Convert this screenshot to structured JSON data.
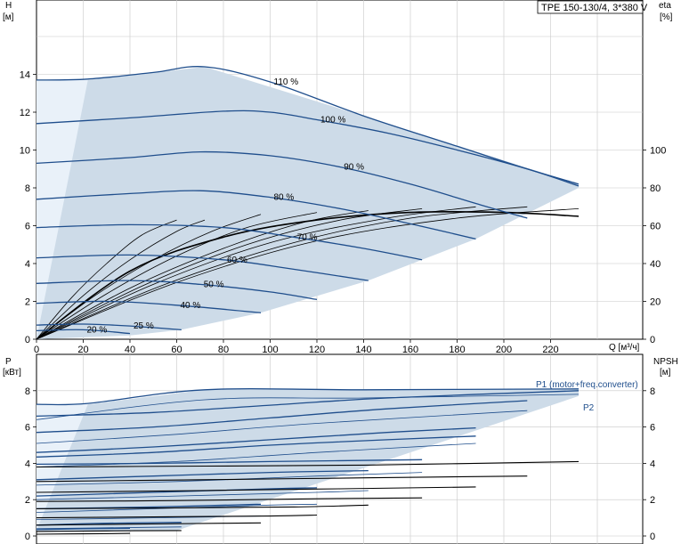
{
  "chart_data": [
    {
      "id": "head",
      "type": "line",
      "title": "TPE 150-130/4, 3*380 V",
      "xlabel": "Q [м³/ч]",
      "ylabel_left": "H",
      "ylabel_left_unit": "[м]",
      "ylabel_right": "eta",
      "ylabel_right_unit": "[%]",
      "xlim": [
        0,
        240
      ],
      "ylim": [
        0,
        18
      ],
      "xticks": [
        "0",
        "20",
        "40",
        "60",
        "80",
        "100",
        "120",
        "140",
        "160",
        "180",
        "200",
        "220"
      ],
      "yticks_left": [
        "0",
        "2",
        "4",
        "6",
        "8",
        "10",
        "12",
        "14"
      ],
      "yticks_right": [
        "0",
        "20",
        "40",
        "60",
        "80",
        "100"
      ],
      "eta_scale": {
        "ylim": [
          0,
          100
        ],
        "h_at_100": 10
      },
      "grid": true,
      "envelope": [
        [
          0,
          13.7
        ],
        [
          22,
          13.7
        ],
        [
          72,
          14.4
        ],
        [
          140,
          11.8
        ],
        [
          232,
          8.2
        ],
        [
          232,
          8.0
        ],
        [
          188,
          5.3
        ],
        [
          142,
          3.1
        ],
        [
          96,
          1.4
        ],
        [
          62,
          0.5
        ],
        [
          40,
          0.2
        ],
        [
          0,
          0
        ]
      ],
      "series": [
        {
          "name": "110 %",
          "x": [
            0,
            22,
            50,
            72,
            100,
            140,
            180,
            210,
            232
          ],
          "y": [
            13.7,
            13.75,
            14.1,
            14.4,
            13.6,
            11.8,
            10.2,
            9.0,
            8.2
          ]
        },
        {
          "name": "100 %",
          "x": [
            0,
            40,
            80,
            100,
            120,
            150,
            180,
            210,
            232
          ],
          "y": [
            11.4,
            11.7,
            12.05,
            12.0,
            11.6,
            10.9,
            10.0,
            9.0,
            8.1
          ]
        },
        {
          "name": "90 %",
          "x": [
            0,
            40,
            70,
            100,
            130,
            160,
            190,
            210
          ],
          "y": [
            9.3,
            9.6,
            9.9,
            9.7,
            9.1,
            8.2,
            7.1,
            6.4
          ]
        },
        {
          "name": "80 %",
          "x": [
            0,
            40,
            70,
            100,
            130,
            160,
            188
          ],
          "y": [
            7.4,
            7.7,
            7.85,
            7.5,
            6.9,
            6.1,
            5.3
          ]
        },
        {
          "name": "70 %",
          "x": [
            0,
            40,
            80,
            110,
            140,
            165
          ],
          "y": [
            5.9,
            6.05,
            5.9,
            5.4,
            4.8,
            4.2
          ]
        },
        {
          "name": "60 %",
          "x": [
            0,
            40,
            80,
            110,
            142
          ],
          "y": [
            4.3,
            4.45,
            4.2,
            3.7,
            3.1
          ]
        },
        {
          "name": "50 %",
          "x": [
            0,
            40,
            70,
            100,
            120
          ],
          "y": [
            2.95,
            3.1,
            2.9,
            2.5,
            2.1
          ]
        },
        {
          "name": "40 %",
          "x": [
            0,
            30,
            60,
            96
          ],
          "y": [
            1.9,
            2.0,
            1.8,
            1.4
          ]
        },
        {
          "name": "25 %",
          "x": [
            0,
            20,
            40,
            62
          ],
          "y": [
            0.75,
            0.8,
            0.7,
            0.5
          ]
        },
        {
          "name": "20 %",
          "x": [
            0,
            20,
            40
          ],
          "y": [
            0.45,
            0.5,
            0.3
          ]
        }
      ],
      "eta_curves": [
        {
          "x": [
            0,
            15,
            30,
            45,
            60
          ],
          "y": [
            0,
            22,
            40,
            55,
            63
          ]
        },
        {
          "x": [
            0,
            20,
            40,
            60,
            72
          ],
          "y": [
            0,
            23,
            42,
            57,
            63
          ]
        },
        {
          "x": [
            0,
            25,
            50,
            75,
            96
          ],
          "y": [
            0,
            23,
            42,
            57,
            66
          ]
        },
        {
          "x": [
            0,
            30,
            60,
            90,
            120
          ],
          "y": [
            0,
            24,
            44,
            59,
            67
          ]
        },
        {
          "x": [
            0,
            40,
            80,
            115,
            142
          ],
          "y": [
            0,
            27,
            48,
            62,
            68
          ]
        },
        {
          "x": [
            0,
            45,
            90,
            130,
            165
          ],
          "y": [
            0,
            28,
            50,
            63,
            69
          ]
        },
        {
          "x": [
            0,
            50,
            100,
            150,
            188
          ],
          "y": [
            0,
            29,
            51,
            64,
            70
          ]
        },
        {
          "x": [
            0,
            55,
            110,
            160,
            210
          ],
          "y": [
            0,
            29,
            51,
            64,
            70
          ]
        },
        {
          "x": [
            0,
            60,
            120,
            180,
            232
          ],
          "y": [
            0,
            30,
            52,
            64,
            69
          ]
        }
      ],
      "eta_max_curve": {
        "x": [
          0,
          40,
          80,
          120,
          160,
          200,
          232
        ],
        "y": [
          0,
          36,
          54,
          63,
          67,
          67,
          65
        ]
      }
    },
    {
      "id": "power",
      "type": "line",
      "xlim": [
        0,
        240
      ],
      "ylabel_left": "P",
      "ylabel_left_unit": "[кВт]",
      "ylabel_right": "NPSH",
      "ylabel_right_unit": "[м]",
      "ylim": [
        0,
        9.5
      ],
      "yticks_left": [
        "0",
        "2",
        "4",
        "6",
        "8"
      ],
      "yticks_right": [
        "0",
        "2",
        "4",
        "6",
        "8"
      ],
      "grid": true,
      "legend": [
        {
          "label": "P1 (motor+freq.converter)"
        },
        {
          "label": "P2"
        }
      ],
      "envelope": [
        [
          0,
          7.25
        ],
        [
          22,
          7.25
        ],
        [
          72,
          8.05
        ],
        [
          140,
          8.05
        ],
        [
          232,
          8.1
        ],
        [
          232,
          7.7
        ],
        [
          60,
          0.3
        ],
        [
          0,
          0.3
        ]
      ],
      "p1_series": [
        {
          "x": [
            0,
            22,
            72,
            140,
            232
          ],
          "y": [
            7.25,
            7.3,
            8.05,
            8.05,
            8.1
          ]
        },
        {
          "x": [
            0,
            50,
            100,
            150,
            232
          ],
          "y": [
            6.6,
            6.8,
            7.2,
            7.6,
            8.0
          ]
        },
        {
          "x": [
            0,
            50,
            100,
            150,
            210
          ],
          "y": [
            5.7,
            6.0,
            6.5,
            7.0,
            7.45
          ]
        },
        {
          "x": [
            0,
            50,
            100,
            150,
            188
          ],
          "y": [
            4.6,
            4.9,
            5.3,
            5.7,
            5.95
          ]
        },
        {
          "x": [
            0,
            50,
            100,
            150,
            188
          ],
          "y": [
            4.35,
            4.6,
            5.0,
            5.3,
            5.5
          ]
        },
        {
          "x": [
            0,
            50,
            100,
            165
          ],
          "y": [
            3.95,
            4.0,
            4.1,
            4.2
          ]
        },
        {
          "x": [
            0,
            50,
            100,
            142
          ],
          "y": [
            3.1,
            3.3,
            3.5,
            3.6
          ]
        },
        {
          "x": [
            0,
            50,
            100,
            120
          ],
          "y": [
            2.2,
            2.4,
            2.6,
            2.65
          ]
        },
        {
          "x": [
            0,
            50,
            96
          ],
          "y": [
            1.5,
            1.6,
            1.75
          ]
        },
        {
          "x": [
            0,
            30,
            62
          ],
          "y": [
            0.6,
            0.7,
            0.75
          ]
        },
        {
          "x": [
            0,
            20,
            40
          ],
          "y": [
            0.35,
            0.4,
            0.42
          ]
        }
      ],
      "p2_series": [
        {
          "x": [
            0,
            72,
            140,
            232
          ],
          "y": [
            6.4,
            7.5,
            7.6,
            7.8
          ]
        },
        {
          "x": [
            0,
            60,
            120,
            210
          ],
          "y": [
            5.1,
            5.6,
            6.2,
            6.9
          ]
        },
        {
          "x": [
            0,
            60,
            120,
            188
          ],
          "y": [
            3.8,
            4.1,
            4.6,
            5.1
          ]
        },
        {
          "x": [
            0,
            60,
            120,
            165
          ],
          "y": [
            2.8,
            3.0,
            3.3,
            3.5
          ]
        },
        {
          "x": [
            0,
            60,
            120,
            142
          ],
          "y": [
            2.0,
            2.2,
            2.4,
            2.5
          ]
        },
        {
          "x": [
            0,
            50,
            100,
            120
          ],
          "y": [
            1.3,
            1.5,
            1.7,
            1.75
          ]
        },
        {
          "x": [
            0,
            50,
            96
          ],
          "y": [
            0.9,
            1.0,
            1.1
          ]
        },
        {
          "x": [
            0,
            30,
            62
          ],
          "y": [
            0.4,
            0.45,
            0.5
          ]
        },
        {
          "x": [
            0,
            20,
            40
          ],
          "y": [
            0.25,
            0.28,
            0.3
          ]
        }
      ],
      "npsh_series": [
        {
          "x": [
            0,
            72,
            140,
            232
          ],
          "y": [
            3.8,
            3.85,
            3.9,
            4.1
          ]
        },
        {
          "x": [
            0,
            72,
            140,
            210
          ],
          "y": [
            3.0,
            3.1,
            3.2,
            3.3
          ]
        },
        {
          "x": [
            0,
            70,
            130,
            188
          ],
          "y": [
            2.4,
            2.5,
            2.6,
            2.7
          ]
        },
        {
          "x": [
            0,
            60,
            120,
            165
          ],
          "y": [
            1.9,
            1.95,
            2.05,
            2.1
          ]
        },
        {
          "x": [
            0,
            60,
            110,
            142
          ],
          "y": [
            1.5,
            1.55,
            1.6,
            1.7
          ]
        },
        {
          "x": [
            0,
            50,
            100,
            120
          ],
          "y": [
            1.0,
            1.05,
            1.1,
            1.15
          ]
        },
        {
          "x": [
            0,
            40,
            80,
            96
          ],
          "y": [
            0.6,
            0.65,
            0.7,
            0.72
          ]
        },
        {
          "x": [
            0,
            30,
            62
          ],
          "y": [
            0.25,
            0.28,
            0.3
          ]
        },
        {
          "x": [
            0,
            20,
            40
          ],
          "y": [
            0.1,
            0.12,
            0.14
          ]
        }
      ]
    }
  ]
}
